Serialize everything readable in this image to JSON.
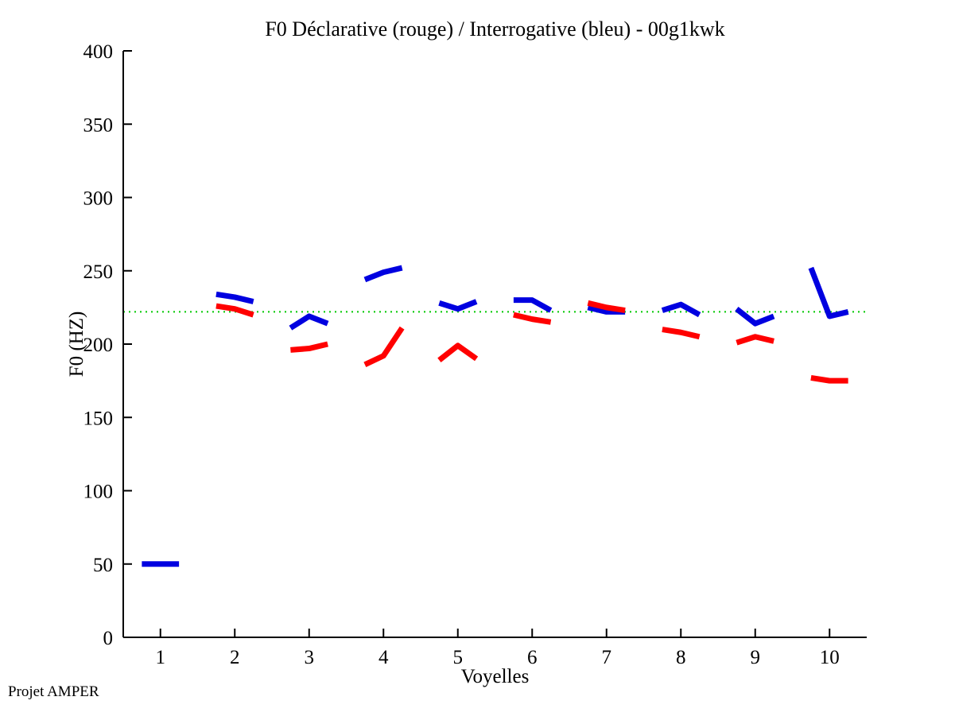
{
  "figure": {
    "footer": "Projet AMPER"
  },
  "chart_data": {
    "type": "line",
    "title": "F0 Déclarative (rouge) / Interrogative (bleu) - 00g1kwk",
    "xlabel": "Voyelles",
    "ylabel": "F0 (HZ)",
    "xlim": [
      0.5,
      10.5
    ],
    "ylim": [
      0,
      400
    ],
    "xticks": [
      1,
      2,
      3,
      4,
      5,
      6,
      7,
      8,
      9,
      10
    ],
    "yticks": [
      0,
      50,
      100,
      150,
      200,
      250,
      300,
      350,
      400
    ],
    "grid": false,
    "legend": "none (encoded in title: rouge = déclarative, bleu = interrogative)",
    "point_offsets": [
      -0.25,
      0,
      0.25
    ],
    "reference_line": {
      "value": 222,
      "color": "#00C800",
      "style": "dotted"
    },
    "series": [
      {
        "name": "Interrogative (bleu)",
        "slug": "interrogative",
        "color": "#0000E0",
        "line_width": 7,
        "values_by_vowel": [
          [
            50,
            50,
            50
          ],
          [
            234,
            232,
            229
          ],
          [
            211,
            219,
            214
          ],
          [
            244,
            249,
            252
          ],
          [
            228,
            224,
            229
          ],
          [
            230,
            230,
            223
          ],
          [
            225,
            222,
            222
          ],
          [
            223,
            227,
            220
          ],
          [
            224,
            214,
            219
          ],
          [
            252,
            219,
            222
          ]
        ]
      },
      {
        "name": "Déclarative (rouge)",
        "slug": "declarative",
        "color": "#FF0000",
        "line_width": 7,
        "values_by_vowel": [
          null,
          [
            226,
            224,
            220
          ],
          [
            196,
            197,
            200
          ],
          [
            186,
            192,
            211
          ],
          [
            189,
            199,
            190
          ],
          [
            220,
            217,
            215
          ],
          [
            228,
            225,
            223
          ],
          [
            210,
            208,
            205
          ],
          [
            201,
            205,
            202
          ],
          [
            177,
            175,
            175
          ]
        ]
      }
    ]
  }
}
